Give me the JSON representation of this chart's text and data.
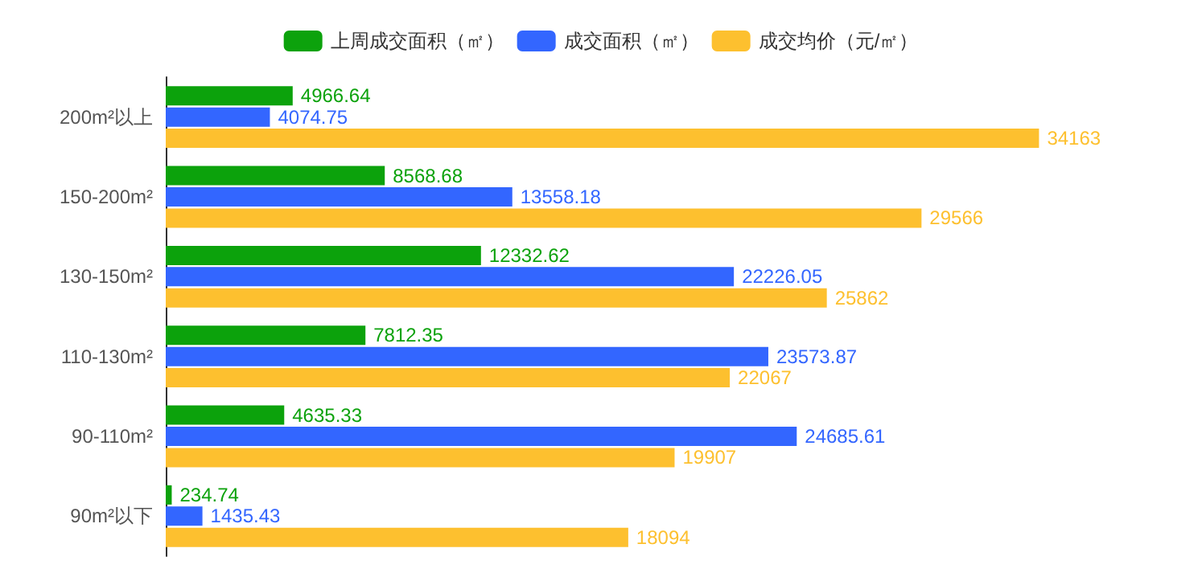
{
  "chart_data": {
    "type": "bar",
    "orientation": "horizontal",
    "data_labels": true,
    "legend": "top",
    "tick_labels": "y",
    "categories": [
      "200m²以上",
      "150-200m²",
      "130-150m²",
      "110-130m²",
      "90-110m²",
      "90m²以下"
    ],
    "series": [
      {
        "name": "上周成交面积（㎡）",
        "color": "#0ca20c",
        "values": [
          4966.64,
          8568.68,
          12332.62,
          7812.35,
          4635.33,
          234.74
        ]
      },
      {
        "name": "成交面积（㎡）",
        "color": "#3366ff",
        "values": [
          4074.75,
          13558.18,
          22226.05,
          23573.87,
          24685.61,
          1435.43
        ]
      },
      {
        "name": "成交均价（元/㎡）",
        "color": "#fdc02f",
        "values": [
          34163,
          29566,
          25862,
          22067,
          19907,
          18094
        ]
      }
    ]
  }
}
